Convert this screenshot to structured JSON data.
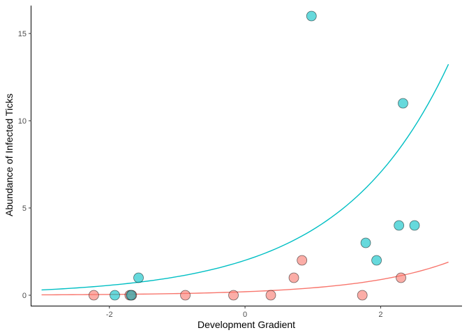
{
  "chart_data": {
    "type": "scatter",
    "title": "",
    "xlabel": "Development Gradient",
    "ylabel": "Abundance of Infected Ticks",
    "xlim": [
      -3.15,
      3.2
    ],
    "ylim": [
      -0.6,
      16.6
    ],
    "x_ticks": [
      -2,
      0,
      2
    ],
    "x_tick_labels": [
      "-2",
      "0",
      "2"
    ],
    "y_ticks": [
      0,
      5,
      10,
      15
    ],
    "y_tick_labels": [
      "0",
      "5",
      "10",
      "15"
    ],
    "grid": false,
    "legend": "none",
    "series": [
      {
        "color": "#F8766D",
        "points": [
          {
            "x": -2.23,
            "y": 0
          },
          {
            "x": -1.7,
            "y": 0
          },
          {
            "x": -1.67,
            "y": 0
          },
          {
            "x": -0.88,
            "y": 0
          },
          {
            "x": -0.17,
            "y": 0
          },
          {
            "x": 0.38,
            "y": 0
          },
          {
            "x": 0.72,
            "y": 1
          },
          {
            "x": 0.84,
            "y": 2
          },
          {
            "x": 1.73,
            "y": 0
          },
          {
            "x": 2.3,
            "y": 1
          }
        ],
        "fit": {
          "type": "exponential",
          "intercept": 0.2,
          "slope": 0.75,
          "x_range": [
            -3.0,
            3.0
          ]
        }
      },
      {
        "color": "#00BFC4",
        "points": [
          {
            "x": -1.92,
            "y": 0
          },
          {
            "x": -1.68,
            "y": 0
          },
          {
            "x": -1.57,
            "y": 1
          },
          {
            "x": 0.98,
            "y": 16
          },
          {
            "x": 1.78,
            "y": 3
          },
          {
            "x": 1.94,
            "y": 2
          },
          {
            "x": 2.27,
            "y": 4
          },
          {
            "x": 2.33,
            "y": 11
          },
          {
            "x": 2.5,
            "y": 4
          }
        ],
        "fit": {
          "type": "exponential",
          "intercept": 2.0,
          "slope": 0.63,
          "x_range": [
            -3.0,
            3.0
          ]
        }
      }
    ]
  }
}
